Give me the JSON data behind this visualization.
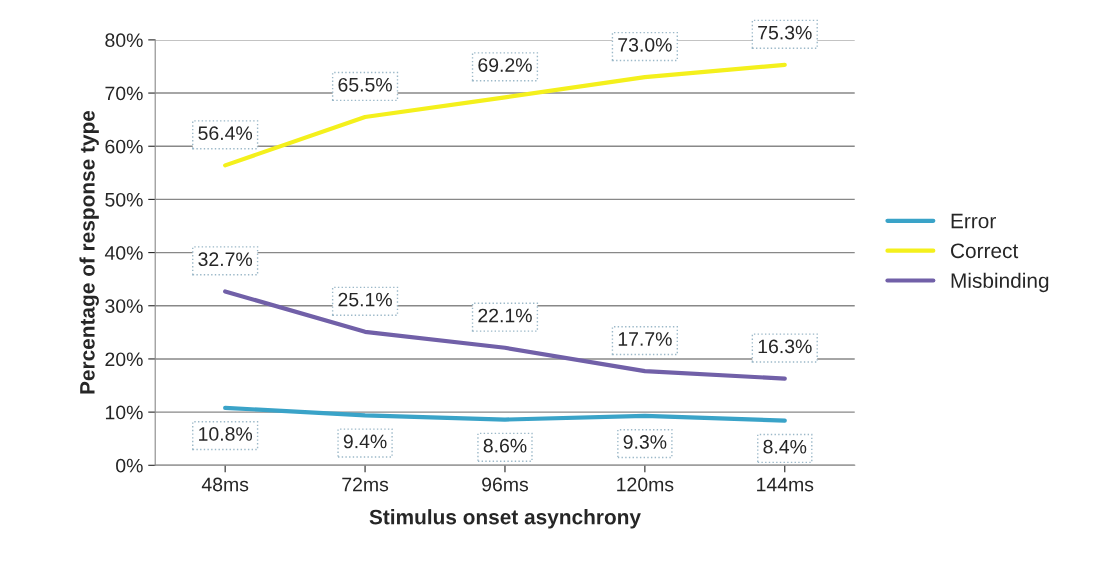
{
  "chart_data": {
    "type": "line",
    "xlabel": "Stimulus onset asynchrony",
    "ylabel": "Percentage of response type",
    "categories": [
      "48ms",
      "72ms",
      "96ms",
      "120ms",
      "144ms"
    ],
    "series": [
      {
        "name": "Error",
        "color": "#3aa3c8",
        "values": [
          10.8,
          9.4,
          8.6,
          9.3,
          8.4
        ],
        "value_labels": [
          "10.8%",
          "9.4%",
          "8.6%",
          "9.3%",
          "8.4%"
        ]
      },
      {
        "name": "Correct",
        "color": "#f4f01c",
        "values": [
          56.4,
          65.5,
          69.2,
          73.0,
          75.3
        ],
        "value_labels": [
          "56.4%",
          "65.5%",
          "69.2%",
          "73.0%",
          "75.3%"
        ]
      },
      {
        "name": "Misbinding",
        "color": "#7160a8",
        "values": [
          32.7,
          25.1,
          22.1,
          17.7,
          16.3
        ],
        "value_labels": [
          "32.7%",
          "25.1%",
          "22.1%",
          "17.7%",
          "16.3%"
        ]
      }
    ],
    "ylim": [
      0,
      80
    ],
    "yticks": [
      {
        "value": 0,
        "label": "0%"
      },
      {
        "value": 10,
        "label": "10%"
      },
      {
        "value": 20,
        "label": "20%"
      },
      {
        "value": 30,
        "label": "30%"
      },
      {
        "value": 40,
        "label": "40%"
      },
      {
        "value": 50,
        "label": "50%"
      },
      {
        "value": 60,
        "label": "60%"
      },
      {
        "value": 70,
        "label": "70%"
      },
      {
        "value": 80,
        "label": "80%"
      }
    ],
    "grid": "y",
    "legend": "right",
    "marker": "none",
    "line_style": "solid"
  }
}
